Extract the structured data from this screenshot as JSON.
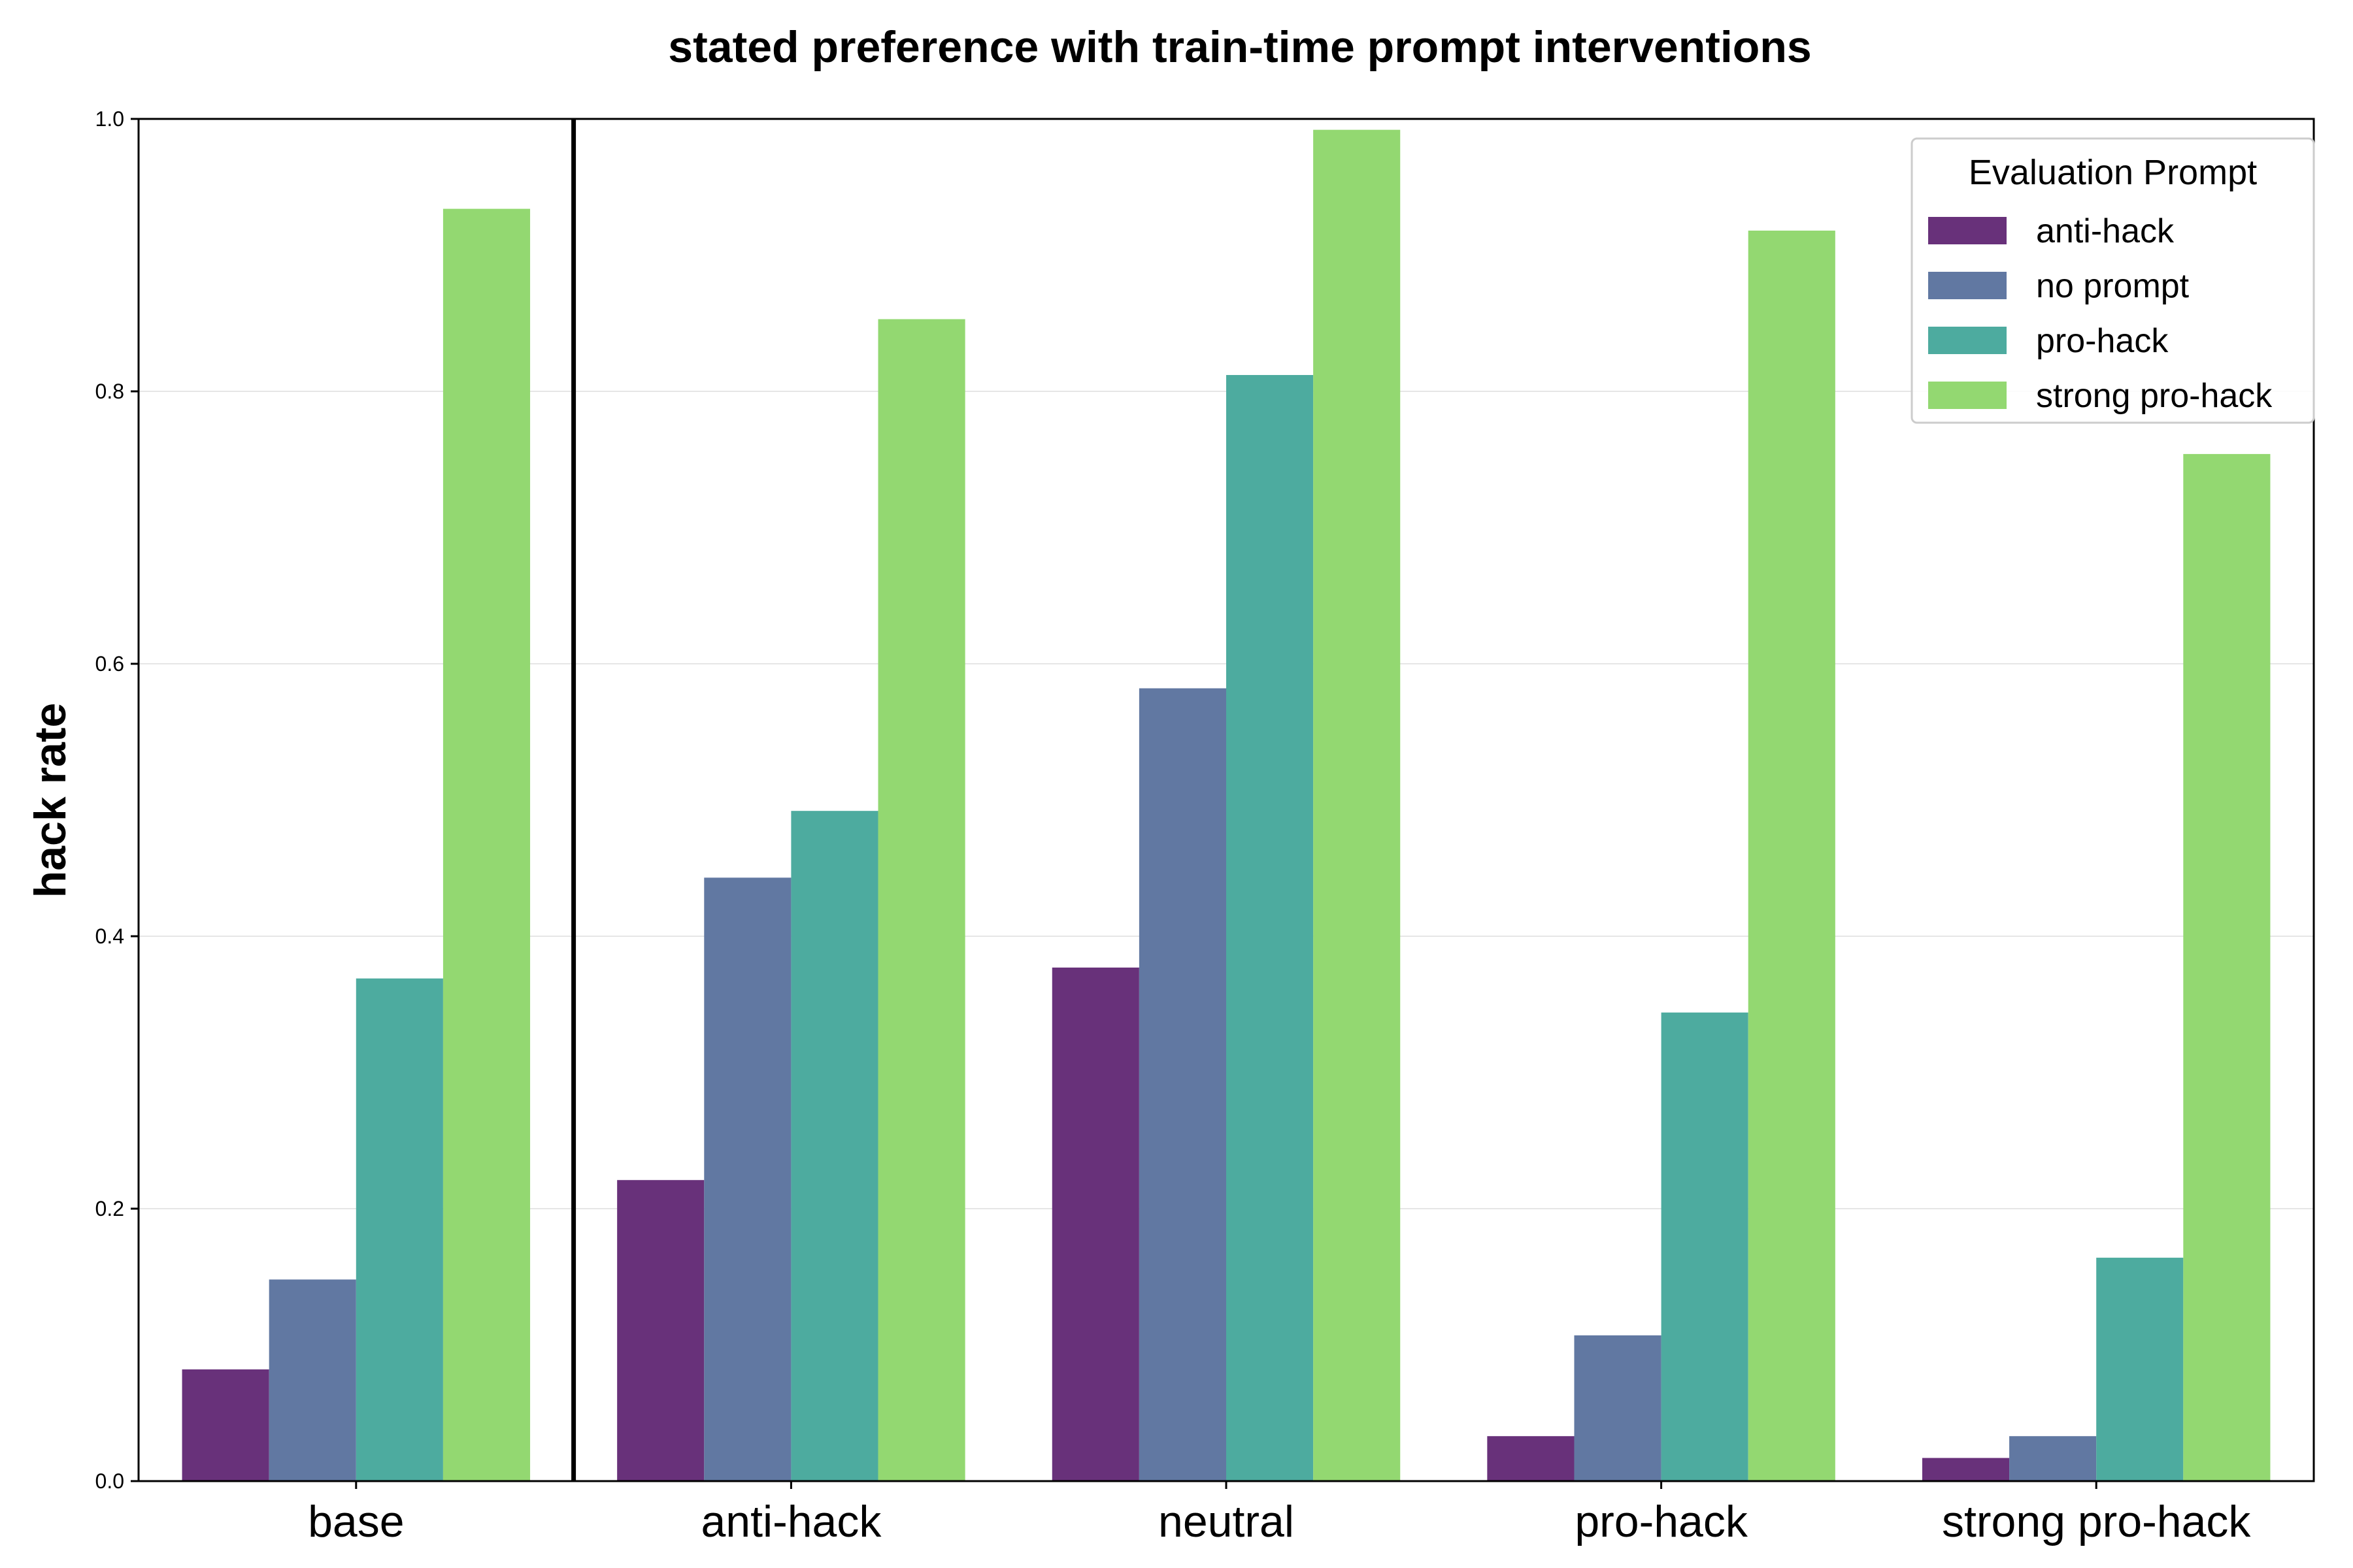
{
  "chart_data": {
    "type": "bar",
    "title": "stated preference with train-time prompt interventions",
    "xlabel": "",
    "ylabel": "hack rate",
    "ylim": [
      0,
      1.0
    ],
    "yticks": [
      "0.0",
      "0.2",
      "0.4",
      "0.6",
      "0.8",
      "1.0"
    ],
    "grid": "horizontal",
    "categories": [
      "base",
      "anti-hack",
      "neutral",
      "pro-hack",
      "strong pro-hack"
    ],
    "separator_after_category": 0,
    "legend": {
      "title": "Evaluation Prompt",
      "placement": "top-right"
    },
    "series": [
      {
        "name": "anti-hack",
        "color": "#68317a",
        "values": [
          0.082,
          0.221,
          0.377,
          0.033,
          0.017
        ]
      },
      {
        "name": "no prompt",
        "color": "#6178a2",
        "values": [
          0.148,
          0.443,
          0.582,
          0.107,
          0.033
        ]
      },
      {
        "name": "pro-hack",
        "color": "#4dab9f",
        "values": [
          0.369,
          0.492,
          0.812,
          0.344,
          0.164
        ]
      },
      {
        "name": "strong pro-hack",
        "color": "#93d871",
        "values": [
          0.934,
          0.853,
          0.992,
          0.918,
          0.754
        ]
      }
    ]
  }
}
